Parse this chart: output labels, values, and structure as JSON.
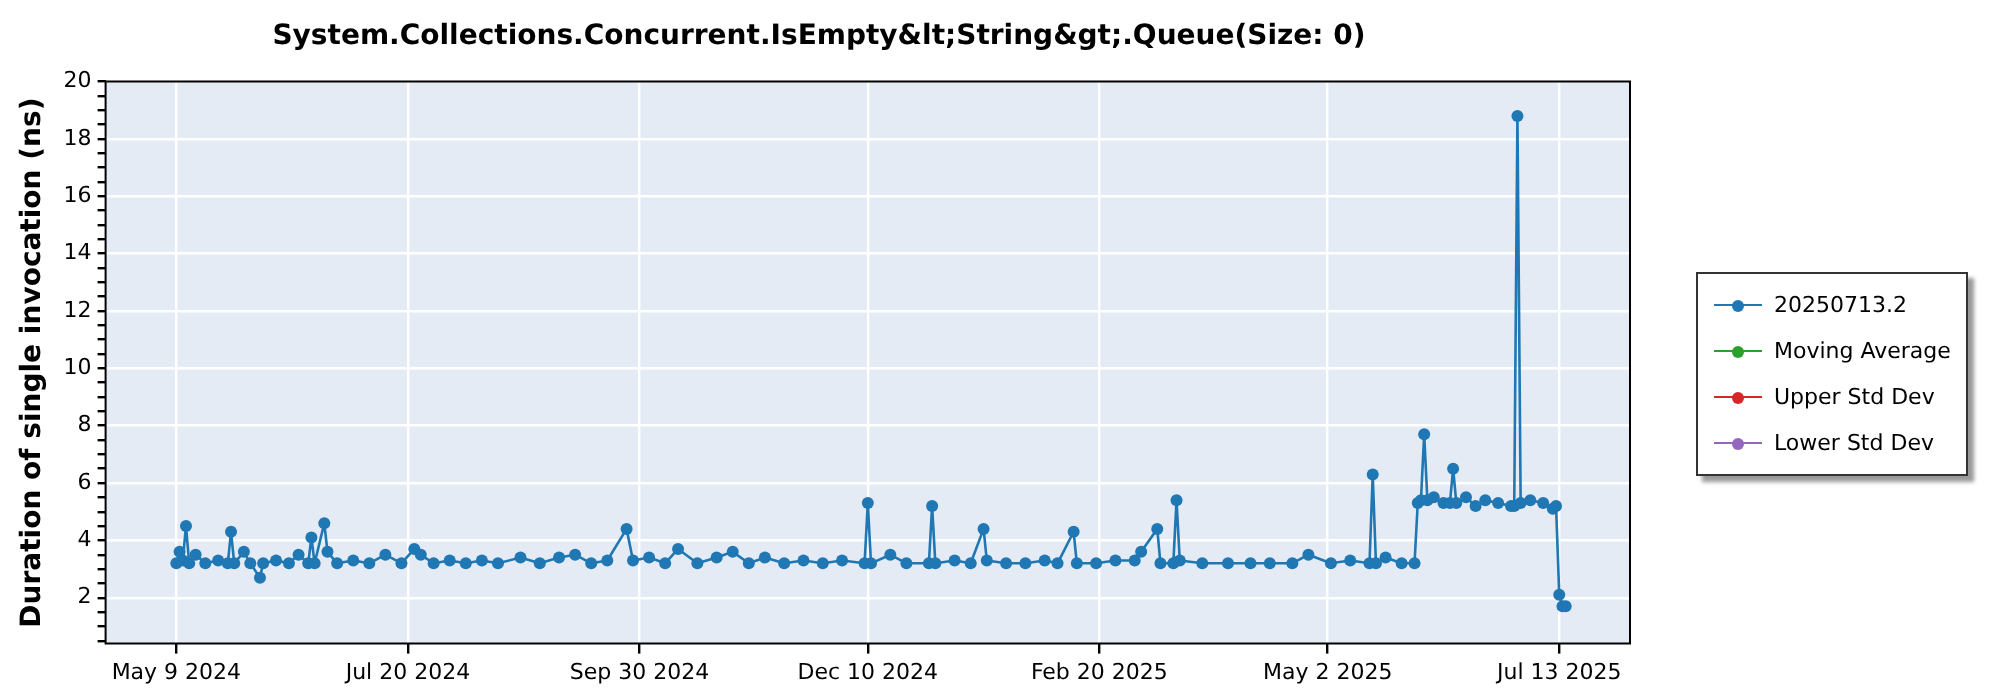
{
  "chart_data": {
    "type": "line",
    "title": "System.Collections.Concurrent.IsEmpty&lt;String&gt;.Queue(Size: 0)",
    "ylabel": "Duration of single invocation (ns)",
    "x": [
      "2024-05-09",
      "2024-05-10",
      "2024-05-11",
      "2024-05-12",
      "2024-05-13",
      "2024-05-15",
      "2024-05-18",
      "2024-05-22",
      "2024-05-25",
      "2024-05-26",
      "2024-05-27",
      "2024-05-30",
      "2024-06-01",
      "2024-06-04",
      "2024-06-05",
      "2024-06-09",
      "2024-06-13",
      "2024-06-16",
      "2024-06-19",
      "2024-06-20",
      "2024-06-21",
      "2024-06-24",
      "2024-06-25",
      "2024-06-28",
      "2024-07-03",
      "2024-07-08",
      "2024-07-13",
      "2024-07-18",
      "2024-07-22",
      "2024-07-24",
      "2024-07-28",
      "2024-08-02",
      "2024-08-07",
      "2024-08-12",
      "2024-08-17",
      "2024-08-24",
      "2024-08-30",
      "2024-09-05",
      "2024-09-10",
      "2024-09-15",
      "2024-09-20",
      "2024-09-26",
      "2024-09-28",
      "2024-10-03",
      "2024-10-08",
      "2024-10-12",
      "2024-10-18",
      "2024-10-24",
      "2024-10-29",
      "2024-11-03",
      "2024-11-08",
      "2024-11-14",
      "2024-11-20",
      "2024-11-26",
      "2024-12-02",
      "2024-12-09",
      "2024-12-10",
      "2024-12-11",
      "2024-12-17",
      "2024-12-22",
      "2024-12-29",
      "2024-12-30",
      "2024-12-31",
      "2025-01-06",
      "2025-01-11",
      "2025-01-15",
      "2025-01-16",
      "2025-01-22",
      "2025-01-28",
      "2025-02-03",
      "2025-02-07",
      "2025-02-12",
      "2025-02-13",
      "2025-02-19",
      "2025-02-25",
      "2025-03-03",
      "2025-03-05",
      "2025-03-10",
      "2025-03-11",
      "2025-03-15",
      "2025-03-16",
      "2025-03-17",
      "2025-03-24",
      "2025-04-01",
      "2025-04-08",
      "2025-04-14",
      "2025-04-21",
      "2025-04-26",
      "2025-05-03",
      "2025-05-09",
      "2025-05-15",
      "2025-05-16",
      "2025-05-17",
      "2025-05-20",
      "2025-05-25",
      "2025-05-29",
      "2025-05-30",
      "2025-05-31",
      "2025-06-01",
      "2025-06-02",
      "2025-06-04",
      "2025-06-07",
      "2025-06-09",
      "2025-06-10",
      "2025-06-11",
      "2025-06-14",
      "2025-06-17",
      "2025-06-20",
      "2025-06-24",
      "2025-06-28",
      "2025-06-29",
      "2025-06-30",
      "2025-07-01",
      "2025-07-04",
      "2025-07-08",
      "2025-07-11",
      "2025-07-12",
      "2025-07-13",
      "2025-07-14",
      "2025-07-15"
    ],
    "series": [
      {
        "name": "20250713.2",
        "color": "#1f77b4",
        "values": [
          3.2,
          3.6,
          3.3,
          4.5,
          3.2,
          3.5,
          3.2,
          3.3,
          3.2,
          4.3,
          3.2,
          3.6,
          3.2,
          2.7,
          3.2,
          3.3,
          3.2,
          3.5,
          3.2,
          4.1,
          3.2,
          4.6,
          3.6,
          3.2,
          3.3,
          3.2,
          3.5,
          3.2,
          3.7,
          3.5,
          3.2,
          3.3,
          3.2,
          3.3,
          3.2,
          3.4,
          3.2,
          3.4,
          3.5,
          3.2,
          3.3,
          4.4,
          3.3,
          3.4,
          3.2,
          3.7,
          3.2,
          3.4,
          3.6,
          3.2,
          3.4,
          3.2,
          3.3,
          3.2,
          3.3,
          3.2,
          5.3,
          3.2,
          3.5,
          3.2,
          3.2,
          5.2,
          3.2,
          3.3,
          3.2,
          4.4,
          3.3,
          3.2,
          3.2,
          3.3,
          3.2,
          4.3,
          3.2,
          3.2,
          3.3,
          3.3,
          3.6,
          4.4,
          3.2,
          3.2,
          5.4,
          3.3,
          3.2,
          3.2,
          3.2,
          3.2,
          3.2,
          3.5,
          3.2,
          3.3,
          3.2,
          6.3,
          3.2,
          3.4,
          3.2,
          3.2,
          5.3,
          5.4,
          7.7,
          5.4,
          5.5,
          5.3,
          5.3,
          6.5,
          5.3,
          5.5,
          5.2,
          5.4,
          5.3,
          5.2,
          5.2,
          18.8,
          5.3,
          5.4,
          5.3,
          5.1,
          5.2,
          2.1,
          1.7,
          1.7
        ]
      },
      {
        "name": "Moving Average",
        "color": "#2ca02c",
        "values": [
          null,
          null,
          null,
          null,
          null,
          null,
          null,
          null,
          null,
          null,
          null,
          null,
          null,
          null,
          null,
          null,
          null,
          null,
          null,
          null,
          null,
          null,
          null,
          null,
          null,
          null,
          null,
          null,
          null,
          null,
          null,
          null,
          null,
          null,
          null,
          null,
          null,
          null,
          null,
          null,
          null,
          null,
          null,
          null,
          null,
          null,
          null,
          null,
          null,
          null,
          null,
          null,
          null,
          null,
          null,
          null,
          null,
          null,
          null,
          null,
          null,
          null,
          null,
          null,
          null,
          null,
          null,
          null,
          null,
          null,
          null,
          null,
          null,
          null,
          null,
          null,
          null,
          null,
          null,
          null,
          null,
          null,
          null,
          null,
          null,
          null,
          null,
          null,
          null,
          null,
          null,
          null,
          null,
          null,
          null,
          null,
          null,
          null,
          null,
          null,
          null,
          null,
          null,
          null,
          null,
          null,
          null,
          null,
          null,
          null,
          null,
          null,
          null,
          null,
          null,
          null,
          null,
          null,
          null,
          null
        ]
      },
      {
        "name": "Upper Std Dev",
        "color": "#d62728",
        "values": [
          null,
          null,
          null,
          null,
          null,
          null,
          null,
          null,
          null,
          null,
          null,
          null,
          null,
          null,
          null,
          null,
          null,
          null,
          null,
          null,
          null,
          null,
          null,
          null,
          null,
          null,
          null,
          null,
          null,
          null,
          null,
          null,
          null,
          null,
          null,
          null,
          null,
          null,
          null,
          null,
          null,
          null,
          null,
          null,
          null,
          null,
          null,
          null,
          null,
          null,
          null,
          null,
          null,
          null,
          null,
          null,
          null,
          null,
          null,
          null,
          null,
          null,
          null,
          null,
          null,
          null,
          null,
          null,
          null,
          null,
          null,
          null,
          null,
          null,
          null,
          null,
          null,
          null,
          null,
          null,
          null,
          null,
          null,
          null,
          null,
          null,
          null,
          null,
          null,
          null,
          null,
          null,
          null,
          null,
          null,
          null,
          null,
          null,
          null,
          null,
          null,
          null,
          null,
          null,
          null,
          null,
          null,
          null,
          null,
          null,
          null,
          null,
          null,
          null,
          null,
          null,
          null,
          null,
          null,
          null
        ]
      },
      {
        "name": "Lower Std Dev",
        "color": "#9467bd",
        "values": [
          null,
          null,
          null,
          null,
          null,
          null,
          null,
          null,
          null,
          null,
          null,
          null,
          null,
          null,
          null,
          null,
          null,
          null,
          null,
          null,
          null,
          null,
          null,
          null,
          null,
          null,
          null,
          null,
          null,
          null,
          null,
          null,
          null,
          null,
          null,
          null,
          null,
          null,
          null,
          null,
          null,
          null,
          null,
          null,
          null,
          null,
          null,
          null,
          null,
          null,
          null,
          null,
          null,
          null,
          null,
          null,
          null,
          null,
          null,
          null,
          null,
          null,
          null,
          null,
          null,
          null,
          null,
          null,
          null,
          null,
          null,
          null,
          null,
          null,
          null,
          null,
          null,
          null,
          null,
          null,
          null,
          null,
          null,
          null,
          null,
          null,
          null,
          null,
          null,
          null,
          null,
          null,
          null,
          null,
          null,
          null,
          null,
          null,
          null,
          null,
          null,
          null,
          null,
          null,
          null,
          null,
          null,
          null,
          null,
          null,
          null,
          null,
          null,
          null,
          null,
          null,
          null,
          null,
          null,
          null
        ]
      }
    ],
    "xlim": [
      "2024-04-17",
      "2025-08-04"
    ],
    "xticks": [
      {
        "value": "2024-05-09",
        "label": "May 9 2024"
      },
      {
        "value": "2024-07-20",
        "label": "Jul 20 2024"
      },
      {
        "value": "2024-09-30",
        "label": "Sep 30 2024"
      },
      {
        "value": "2024-12-10",
        "label": "Dec 10 2024"
      },
      {
        "value": "2025-02-20",
        "label": "Feb 20 2025"
      },
      {
        "value": "2025-05-02",
        "label": "May 2 2025"
      },
      {
        "value": "2025-07-13",
        "label": "Jul 13 2025"
      }
    ],
    "ylim": [
      0.4,
      20
    ],
    "yticks": [
      {
        "value": 0.5,
        "label": null
      },
      {
        "value": 1,
        "label": null
      },
      {
        "value": 1.5,
        "label": null
      },
      2,
      {
        "value": 2.5,
        "label": null
      },
      {
        "value": 3,
        "label": null
      },
      {
        "value": 3.5,
        "label": null
      },
      4,
      {
        "value": 4.5,
        "label": null
      },
      {
        "value": 5,
        "label": null
      },
      {
        "value": 5.5,
        "label": null
      },
      6,
      {
        "value": 6.5,
        "label": null
      },
      {
        "value": 7,
        "label": null
      },
      {
        "value": 7.5,
        "label": null
      },
      8,
      {
        "value": 8.5,
        "label": null
      },
      {
        "value": 9,
        "label": null
      },
      {
        "value": 9.5,
        "label": null
      },
      10,
      {
        "value": 10.5,
        "label": null
      },
      {
        "value": 11,
        "label": null
      },
      {
        "value": 11.5,
        "label": null
      },
      12,
      {
        "value": 12.5,
        "label": null
      },
      {
        "value": 13,
        "label": null
      },
      {
        "value": 13.5,
        "label": null
      },
      14,
      {
        "value": 14.5,
        "label": null
      },
      {
        "value": 15,
        "label": null
      },
      {
        "value": 15.5,
        "label": null
      },
      16,
      {
        "value": 16.5,
        "label": null
      },
      {
        "value": 17,
        "label": null
      },
      {
        "value": 17.5,
        "label": null
      },
      18,
      {
        "value": 18.5,
        "label": null
      },
      {
        "value": 19,
        "label": null
      },
      {
        "value": 19.5,
        "label": null
      },
      20
    ],
    "grid": true,
    "legend": "right",
    "marker": "circle",
    "line_style": "solid"
  }
}
